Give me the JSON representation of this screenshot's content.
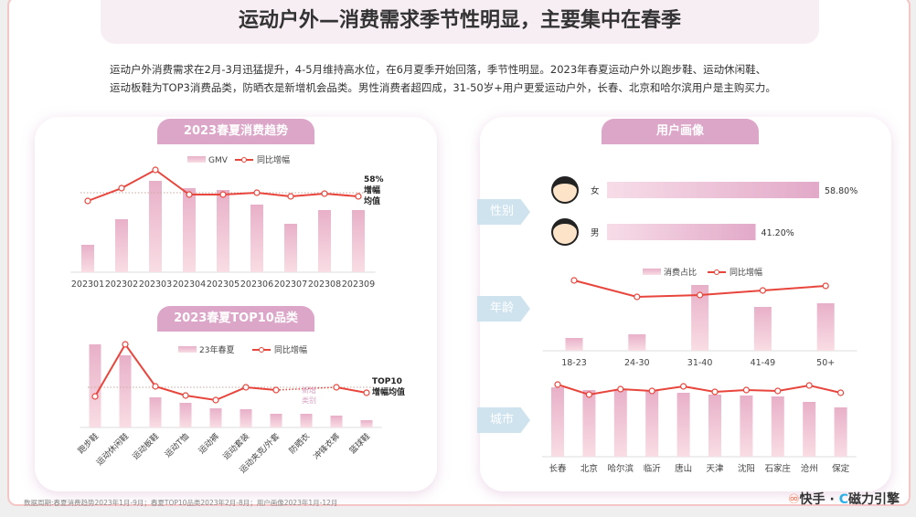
{
  "title": "运动户外—消费需求季节性明显，主要集中在春季",
  "summary": [
    "运动户外消费需求在2月-3月迅猛提升，4-5月维持高水位，在6月夏季开始回落，季节性明显。2023年春夏运动户外以跑步鞋、运动休闲鞋、",
    "运动板鞋为TOP3消费品类，防晒衣是新增机会品类。男性消费者超四成，31-50岁+用户更爱运动户外，长春、北京和哈尔滨用户是主购买力。"
  ],
  "colors": {
    "bar": "#f0b8cc",
    "line": "#e8453c",
    "pill": "#dca6c8"
  },
  "chart_data": [
    {
      "type": "bar+line",
      "title": "2023春夏消费趋势",
      "categories": [
        "202301",
        "202302",
        "202303",
        "202304",
        "202305",
        "202306",
        "202307",
        "202308",
        "202309"
      ],
      "series": [
        {
          "name": "GMV",
          "values": [
            30,
            58,
            100,
            92,
            90,
            74,
            53,
            68,
            68
          ]
        },
        {
          "name": "同比增幅",
          "values": [
            78,
            92,
            112,
            85,
            85,
            87,
            83,
            86,
            83
          ]
        }
      ],
      "avg_label": [
        "58%",
        "增幅",
        "均值"
      ],
      "avg": 87
    },
    {
      "type": "bar+line",
      "title": "2023春夏TOP10品类",
      "categories": [
        "跑步鞋",
        "运动休闲鞋",
        "运动板鞋",
        "运动T恤",
        "运动裤",
        "运动套装",
        "运动夹克/外套",
        "防晒衣",
        "冲锋衣裤",
        "篮球鞋"
      ],
      "series": [
        {
          "name": "23年春夏",
          "values": [
            91,
            79,
            33,
            27,
            21,
            20,
            15,
            15,
            13,
            8
          ]
        },
        {
          "name": "同比增幅",
          "values": [
            34,
            91,
            45,
            35,
            30,
            44,
            41,
            null,
            44,
            38
          ]
        }
      ],
      "avg_label": [
        "TOP10",
        "增幅均值"
      ],
      "avg": 44,
      "note": [
        "新增",
        "类别"
      ]
    },
    {
      "type": "bar",
      "title": "性别",
      "categories": [
        "女",
        "男"
      ],
      "values": [
        58.8,
        41.2
      ],
      "labels": [
        "58.80%",
        "41.20%"
      ]
    },
    {
      "type": "bar+line",
      "title": "年龄",
      "categories": [
        "18-23",
        "24-30",
        "31-40",
        "41-49",
        "50+"
      ],
      "series": [
        {
          "name": "消费占比",
          "values": [
            14,
            18,
            72,
            48,
            52
          ]
        },
        {
          "name": "同比增幅",
          "values": [
            77,
            59,
            61,
            66,
            71
          ]
        }
      ]
    },
    {
      "type": "bar+line",
      "title": "城市",
      "categories": [
        "长春",
        "北京",
        "哈尔滨",
        "临沂",
        "唐山",
        "天津",
        "沈阳",
        "石家庄",
        "沧州",
        "保定"
      ],
      "series": [
        {
          "name": "消费占比",
          "values": [
            76,
            73,
            74,
            72,
            70,
            68,
            67,
            66,
            60,
            54
          ]
        },
        {
          "name": "同比增幅",
          "values": [
            79,
            68,
            74,
            72,
            77,
            71,
            73,
            72,
            78,
            70
          ]
        }
      ]
    }
  ],
  "right_pill": "用户画像",
  "tags": [
    "性别",
    "年龄",
    "城市"
  ],
  "footnote": "数据周期:春夏消费趋势2023年1月-9月；春夏TOP10品类2023年2月-8月；用户画像2023年1月-12月",
  "logo": {
    "kuaishou": "快手",
    "sep": " · ",
    "cili": "磁力引擎"
  }
}
